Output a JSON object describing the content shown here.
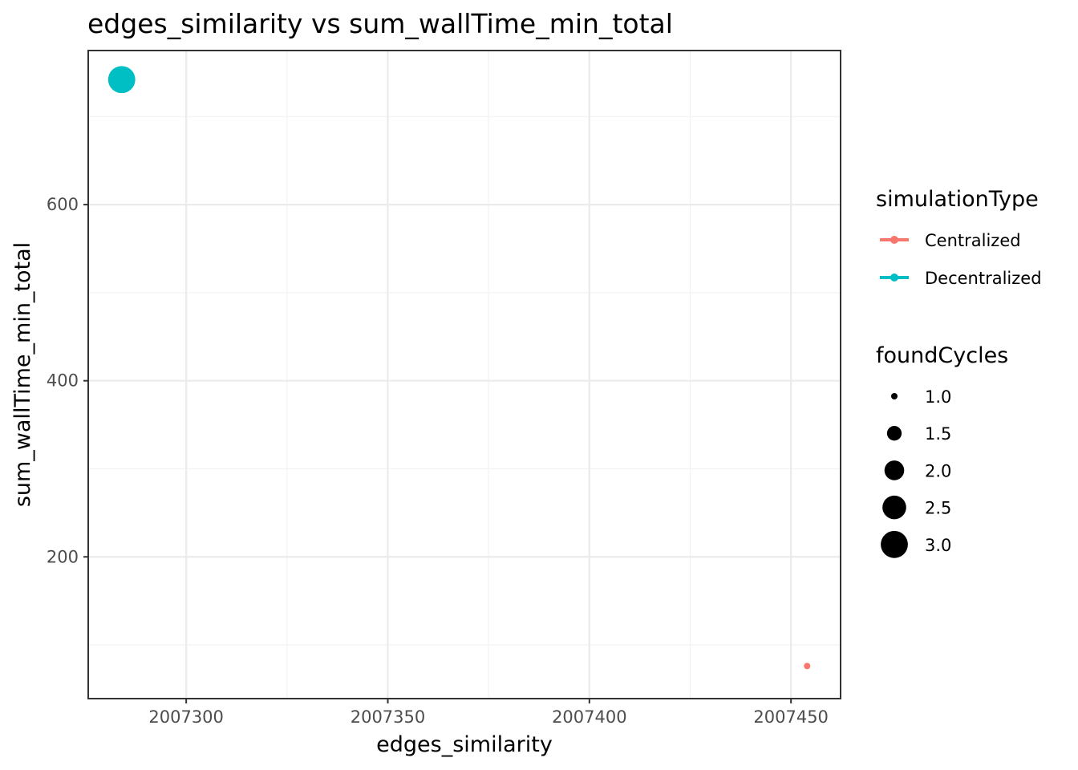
{
  "chart_data": {
    "type": "scatter",
    "title": "edges_similarity  vs  sum_wallTime_min_total",
    "xlabel": "edges_similarity",
    "ylabel": "sum_wallTime_min_total",
    "xlim": [
      2007275.7,
      2007462.3
    ],
    "ylim": [
      39,
      775
    ],
    "x_ticks": [
      2007300,
      2007350,
      2007400,
      2007450
    ],
    "x_tick_labels": [
      "2007300",
      "2007350",
      "2007400",
      "2007450"
    ],
    "y_ticks": [
      200,
      400,
      600
    ],
    "y_tick_labels": [
      "200",
      "400",
      "600"
    ],
    "grid": true,
    "legend_position": "right",
    "color_legend": {
      "title": "simulationType",
      "entries": [
        {
          "label": "Centralized",
          "color": "#F8766D"
        },
        {
          "label": "Decentralized",
          "color": "#00BFC4"
        }
      ]
    },
    "size_legend": {
      "title": "foundCycles",
      "entries": [
        {
          "label": "1.0",
          "value": 1.0
        },
        {
          "label": "1.5",
          "value": 1.5
        },
        {
          "label": "2.0",
          "value": 2.0
        },
        {
          "label": "2.5",
          "value": 2.5
        },
        {
          "label": "3.0",
          "value": 3.0
        }
      ]
    },
    "points": [
      {
        "x": 2007284,
        "y": 742,
        "simulationType": "Decentralized",
        "foundCycles": 3
      },
      {
        "x": 2007454,
        "y": 76,
        "simulationType": "Centralized",
        "foundCycles": 1
      }
    ]
  }
}
